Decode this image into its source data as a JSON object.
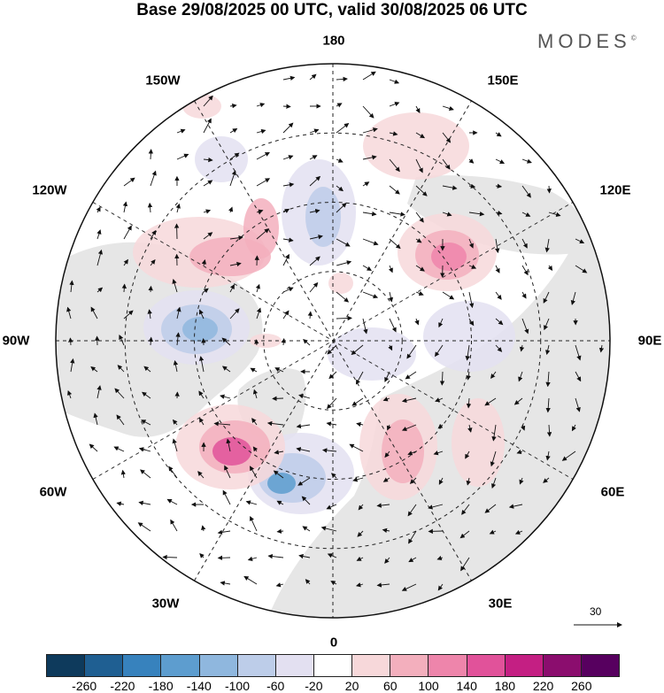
{
  "title": "Base 29/08/2025 00 UTC, valid 30/08/2025 06 UTC",
  "brand": "MODES",
  "brand_mark": "©",
  "map": {
    "projection": "north-polar-stereographic",
    "longitude_labels": {
      "top": "180",
      "bottom": "0",
      "left": "90W",
      "right": "90E",
      "upper_left": "150W",
      "upper_left_2": "120W",
      "upper_right": "150E",
      "upper_right_2": "120E",
      "lower_left": "60W",
      "lower_left_2": "30W",
      "lower_right": "60E",
      "lower_right_2": "30E"
    },
    "wind_reference": {
      "label": "30"
    },
    "colors": {
      "land": "#e6e6e6",
      "ocean": "#ffffff",
      "coast": "#333333",
      "grid": "#222222"
    }
  },
  "colorbar": {
    "ticks": [
      "-260",
      "-220",
      "-180",
      "-140",
      "-100",
      "-60",
      "-20",
      "20",
      "60",
      "100",
      "140",
      "180",
      "220",
      "260"
    ],
    "colors": [
      "#0e3a5c",
      "#1f5f92",
      "#3782bd",
      "#5d9dcf",
      "#8fb7de",
      "#bdcde9",
      "#e3e0f1",
      "#ffffff",
      "#f7d8da",
      "#f3afbd",
      "#ee85ab",
      "#e1529a",
      "#c41f83",
      "#8b0d6e",
      "#57005f"
    ]
  }
}
